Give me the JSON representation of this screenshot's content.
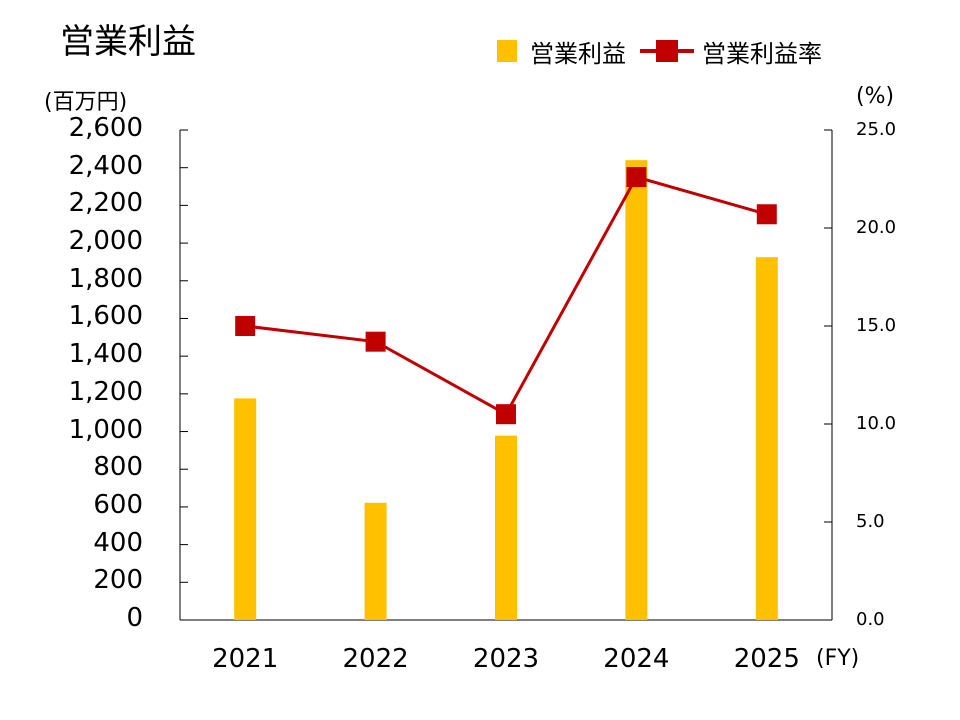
{
  "chart_data": {
    "type": "bar+line",
    "title": "営業利益",
    "categories": [
      "2021",
      "2022",
      "2023",
      "2024",
      "2025"
    ],
    "xlabel": "(FY)",
    "ylabel_left": "(百万円)",
    "ylabel_right": "(%)",
    "ylim_left": [
      0,
      2600
    ],
    "ylim_right": [
      0,
      25
    ],
    "yticks_left": [
      "0",
      "200",
      "400",
      "600",
      "800",
      "1,000",
      "1,200",
      "1,400",
      "1,600",
      "1,800",
      "2,000",
      "2,200",
      "2,400",
      "2,600"
    ],
    "yticks_right": [
      "0.0",
      "5.0",
      "10.0",
      "15.0",
      "20.0",
      "25.0"
    ],
    "grid": false,
    "legend_position": "top-right",
    "series": [
      {
        "name": "営業利益",
        "type": "bar",
        "axis": "left",
        "color": "#FFC000",
        "values": [
          1176,
          622,
          978,
          2440,
          1925
        ]
      },
      {
        "name": "営業利益率",
        "type": "line",
        "axis": "right",
        "color": "#C00000",
        "marker": "square",
        "values": [
          15.0,
          14.2,
          10.5,
          22.6,
          20.7
        ]
      }
    ]
  }
}
